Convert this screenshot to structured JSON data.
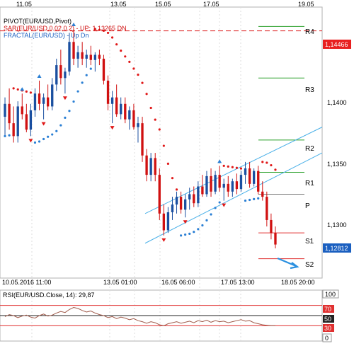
{
  "top_dates": [
    "11.05",
    "13.05",
    "15.05",
    "17.05",
    "19.05"
  ],
  "bottom_dates": [
    "10.05.2016 11:00",
    "13.05 01:00",
    "16.05 06:00",
    "17.05 13:00",
    "18.05 20:00"
  ],
  "legend": {
    "line1": "PIVOT(EUR/USD,Pivot)",
    "line2": "SAR(EUR/USD,0.02,0.2) - UP: 1,13265 DN",
    "line3": "FRACTAL(EUR/USD) - Up Dn"
  },
  "rsi_legend": "RSI(EUR/USD.Close, 14): 29,87",
  "price_axis": [
    "1,1400",
    "1,1350",
    "1,1300"
  ],
  "price_tags": {
    "resistance": "1,14466",
    "current": "1,12812"
  },
  "pivot_labels": [
    "R4",
    "R3",
    "R2",
    "R1",
    "P",
    "S1",
    "S2"
  ],
  "rsi_axis": [
    "100",
    "70",
    "50",
    "30",
    "0"
  ],
  "colors": {
    "bull": "#1a4fa0",
    "bear": "#d01010",
    "sar_up": "#2a7fd4",
    "sar_dn": "#e01818",
    "pivot_r": "#2aa02a",
    "pivot_s": "#e03030",
    "pivot_p": "#7a7a7a",
    "channel": "#4ab0e8",
    "rsi": "#a05a4a"
  },
  "chart_data": {
    "type": "candlestick",
    "instrument": "EUR/USD",
    "indicators": [
      "PIVOT(EUR/USD,Pivot)",
      "SAR(EUR/USD,0.02,0.2)",
      "FRACTAL(EUR/USD)",
      "RSI(EUR/USD.Close, 14)"
    ],
    "price_ylim": [
      1.1255,
      1.1465
    ],
    "sar_up_value": 1.13265,
    "pivot_levels": {
      "R4": 1.145,
      "R3": 1.141,
      "R2": 1.1362,
      "R1": 1.1337,
      "P": 1.132,
      "S1": 1.129,
      "S2": 1.127
    },
    "horizontal_line": 1.14466,
    "last_price": 1.12812,
    "rsi_value": 29.87,
    "rsi_levels": [
      70,
      50,
      30
    ],
    "candles": [
      [
        1.138,
        1.1395,
        1.1365,
        1.139
      ],
      [
        1.139,
        1.1402,
        1.137,
        1.1375
      ],
      [
        1.1375,
        1.1388,
        1.136,
        1.1365
      ],
      [
        1.1365,
        1.1392,
        1.136,
        1.1388
      ],
      [
        1.1388,
        1.1398,
        1.1378,
        1.1382
      ],
      [
        1.1382,
        1.139,
        1.1368,
        1.137
      ],
      [
        1.137,
        1.139,
        1.1365,
        1.1385
      ],
      [
        1.1385,
        1.1402,
        1.138,
        1.1398
      ],
      [
        1.1398,
        1.1408,
        1.1385,
        1.139
      ],
      [
        1.139,
        1.1398,
        1.1378,
        1.1395
      ],
      [
        1.1395,
        1.1405,
        1.1385,
        1.1388
      ],
      [
        1.1388,
        1.141,
        1.1385,
        1.1405
      ],
      [
        1.1405,
        1.1425,
        1.14,
        1.142
      ],
      [
        1.142,
        1.1432,
        1.1405,
        1.141
      ],
      [
        1.141,
        1.1418,
        1.1398,
        1.1415
      ],
      [
        1.1415,
        1.1445,
        1.1412,
        1.1438
      ],
      [
        1.1438,
        1.1448,
        1.142,
        1.1425
      ],
      [
        1.1425,
        1.1435,
        1.1418,
        1.143
      ],
      [
        1.143,
        1.1438,
        1.142,
        1.1425
      ],
      [
        1.1425,
        1.1432,
        1.1418,
        1.1428
      ],
      [
        1.1428,
        1.1435,
        1.142,
        1.1424
      ],
      [
        1.1424,
        1.143,
        1.1415,
        1.1428
      ],
      [
        1.1428,
        1.1432,
        1.142,
        1.1425
      ],
      [
        1.1425,
        1.1428,
        1.1405,
        1.1408
      ],
      [
        1.1408,
        1.1412,
        1.1385,
        1.139
      ],
      [
        1.139,
        1.14,
        1.1375,
        1.1395
      ],
      [
        1.1395,
        1.1405,
        1.138,
        1.1382
      ],
      [
        1.1382,
        1.1395,
        1.1378,
        1.139
      ],
      [
        1.139,
        1.1395,
        1.1375,
        1.1378
      ],
      [
        1.1378,
        1.1388,
        1.137,
        1.1385
      ],
      [
        1.1385,
        1.139,
        1.137,
        1.1372
      ],
      [
        1.1372,
        1.138,
        1.136,
        1.1375
      ],
      [
        1.1375,
        1.138,
        1.1345,
        1.135
      ],
      [
        1.135,
        1.1355,
        1.133,
        1.1335
      ],
      [
        1.1335,
        1.1352,
        1.133,
        1.1348
      ],
      [
        1.1348,
        1.1352,
        1.133,
        1.1335
      ],
      [
        1.1335,
        1.134,
        1.13,
        1.1305
      ],
      [
        1.1305,
        1.1312,
        1.1288,
        1.1292
      ],
      [
        1.1292,
        1.131,
        1.129,
        1.1306
      ],
      [
        1.1306,
        1.1318,
        1.13,
        1.1312
      ],
      [
        1.1312,
        1.1322,
        1.1305,
        1.1318
      ],
      [
        1.1318,
        1.1322,
        1.1305,
        1.1308
      ],
      [
        1.1308,
        1.132,
        1.1302,
        1.1316
      ],
      [
        1.1316,
        1.1325,
        1.1308,
        1.132
      ],
      [
        1.132,
        1.1326,
        1.131,
        1.1313
      ],
      [
        1.1313,
        1.133,
        1.131,
        1.1326
      ],
      [
        1.1326,
        1.1335,
        1.1318,
        1.132
      ],
      [
        1.132,
        1.1338,
        1.1318,
        1.1334
      ],
      [
        1.1334,
        1.134,
        1.1318,
        1.1322
      ],
      [
        1.1322,
        1.1338,
        1.132,
        1.1335
      ],
      [
        1.1335,
        1.1342,
        1.1322,
        1.1325
      ],
      [
        1.1325,
        1.1332,
        1.1315,
        1.1328
      ],
      [
        1.1328,
        1.1334,
        1.1318,
        1.1322
      ],
      [
        1.1322,
        1.1332,
        1.1318,
        1.133
      ],
      [
        1.133,
        1.1336,
        1.132,
        1.1324
      ],
      [
        1.1324,
        1.1338,
        1.1322,
        1.1335
      ],
      [
        1.1335,
        1.1345,
        1.1328,
        1.134
      ],
      [
        1.134,
        1.1345,
        1.1325,
        1.1328
      ],
      [
        1.1328,
        1.134,
        1.1326,
        1.1338
      ],
      [
        1.1338,
        1.1342,
        1.132,
        1.1322
      ],
      [
        1.1322,
        1.133,
        1.1315,
        1.1318
      ],
      [
        1.1318,
        1.1322,
        1.1295,
        1.13
      ],
      [
        1.13,
        1.1305,
        1.1285,
        1.129
      ],
      [
        1.129,
        1.1295,
        1.1278,
        1.1281
      ]
    ],
    "rsi": [
      48,
      52,
      50,
      46,
      49,
      51,
      47,
      45,
      50,
      53,
      49,
      51,
      55,
      58,
      56,
      62,
      66,
      64,
      60,
      57,
      59,
      55,
      52,
      50,
      46,
      48,
      44,
      47,
      45,
      42,
      44,
      40,
      38,
      35,
      38,
      36,
      32,
      30,
      34,
      36,
      38,
      35,
      37,
      39,
      36,
      40,
      38,
      41,
      37,
      40,
      38,
      39,
      36,
      38,
      40,
      42,
      39,
      40,
      36,
      34,
      32,
      31,
      30,
      30
    ]
  }
}
